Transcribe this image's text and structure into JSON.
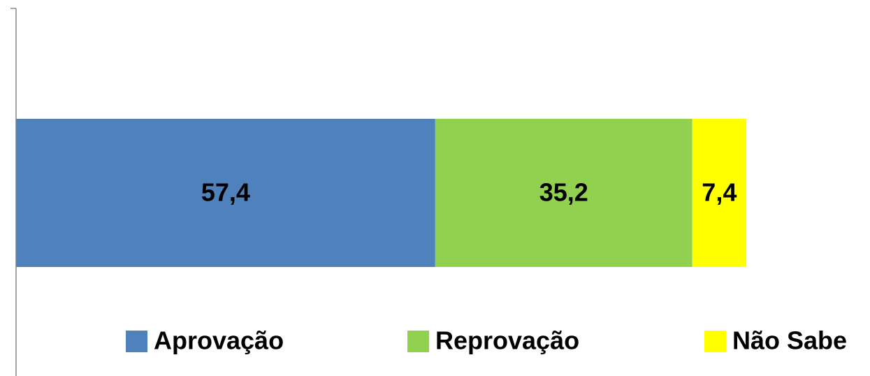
{
  "chart_data": {
    "type": "bar",
    "orientation": "horizontal",
    "stacked": true,
    "categories": [
      null
    ],
    "xlim": [
      0,
      100
    ],
    "legend": "bottom",
    "series": [
      {
        "name": "Aprovação",
        "color": "#4f81bd",
        "values": [
          57.4
        ],
        "value_labels": [
          "57,4"
        ]
      },
      {
        "name": "Reprovação",
        "color": "#92d050",
        "values": [
          35.2
        ],
        "value_labels": [
          "35,2"
        ]
      },
      {
        "name": "Não Sabe",
        "color": "#ffff00",
        "values": [
          7.4
        ],
        "value_labels": [
          "7,4"
        ]
      }
    ]
  }
}
